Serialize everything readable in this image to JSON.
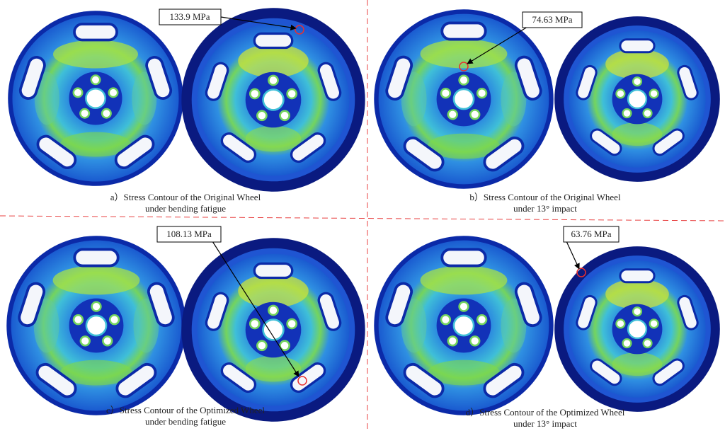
{
  "panels": [
    {
      "caption": [
        "a）Stress Contour of the Original Wheel",
        "under bending fatigue"
      ],
      "annotation": "133.9 MPa"
    },
    {
      "caption": [
        "b）Stress Contour of the Original Wheel",
        "under 13° impact"
      ],
      "annotation": "74.63 MPa"
    },
    {
      "caption": [
        "c）Stress Contour of the Optimized Wheel",
        "under bending fatigue"
      ],
      "annotation": "108.13 MPa"
    },
    {
      "caption": [
        "d）Stress Contour of the Optimized Wheel",
        "under 13° impact"
      ],
      "annotation": "63.76 MPa"
    }
  ]
}
